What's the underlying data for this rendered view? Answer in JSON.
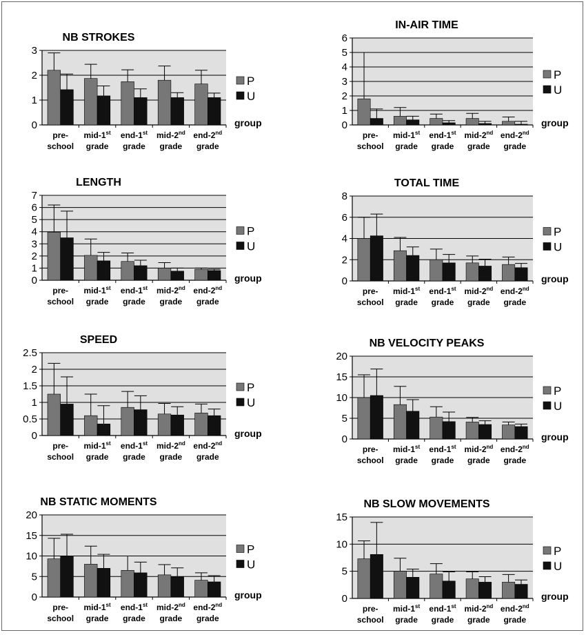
{
  "colors": {
    "plot_bg": "#e0e0e0",
    "P": "#777777",
    "U": "#111111",
    "grid": "#000000"
  },
  "common": {
    "categories": [
      {
        "l1": "pre-",
        "l2": "school",
        "sup": ""
      },
      {
        "l1": "mid-1",
        "l2": "grade",
        "sup": "st"
      },
      {
        "l1": "end-1",
        "l2": "grade",
        "sup": "st"
      },
      {
        "l1": "mid-2",
        "l2": "grade",
        "sup": "nd"
      },
      {
        "l1": "end-2",
        "l2": "grade",
        "sup": "nd"
      }
    ],
    "legend": [
      "P",
      "U"
    ],
    "xlabel": "group"
  },
  "chart_data": [
    {
      "type": "bar",
      "title": "NB STROKES",
      "ylim": [
        0,
        3
      ],
      "yticks": [
        0,
        1,
        2,
        3
      ],
      "ytick_labels": [
        "0",
        "1",
        "2",
        "3"
      ],
      "series": [
        {
          "name": "P",
          "values": [
            2.2,
            1.87,
            1.74,
            1.8,
            1.65
          ],
          "errors": [
            0.7,
            0.57,
            0.48,
            0.57,
            0.55
          ]
        },
        {
          "name": "U",
          "values": [
            1.42,
            1.17,
            1.1,
            1.1,
            1.1
          ],
          "errors": [
            0.63,
            0.4,
            0.35,
            0.2,
            0.18
          ]
        }
      ]
    },
    {
      "type": "bar",
      "title": "IN-AIR TIME",
      "ylim": [
        0,
        6
      ],
      "yticks": [
        0,
        1,
        2,
        3,
        4,
        5,
        6
      ],
      "ytick_labels": [
        "0",
        "1",
        "2",
        "3",
        "4",
        "5",
        "6"
      ],
      "series": [
        {
          "name": "P",
          "values": [
            1.8,
            0.6,
            0.45,
            0.45,
            0.25
          ],
          "errors": [
            3.2,
            0.6,
            0.3,
            0.35,
            0.3
          ]
        },
        {
          "name": "U",
          "values": [
            0.45,
            0.35,
            0.15,
            0.1,
            0.05
          ],
          "errors": [
            0.65,
            0.25,
            0.15,
            0.15,
            0.2
          ]
        }
      ]
    },
    {
      "type": "bar",
      "title": "LENGTH",
      "ylim": [
        0,
        7
      ],
      "yticks": [
        0,
        1,
        2,
        3,
        4,
        5,
        6,
        7
      ],
      "ytick_labels": [
        "0",
        "1",
        "2",
        "3",
        "4",
        "5",
        "6",
        "7"
      ],
      "series": [
        {
          "name": "P",
          "values": [
            3.95,
            2.05,
            1.55,
            1.0,
            0.9
          ],
          "errors": [
            2.25,
            1.35,
            0.7,
            0.45,
            0.1
          ]
        },
        {
          "name": "U",
          "values": [
            3.5,
            1.6,
            1.2,
            0.75,
            0.8
          ],
          "errors": [
            2.2,
            0.7,
            0.45,
            0.25,
            0.1
          ]
        }
      ]
    },
    {
      "type": "bar",
      "title": "TOTAL TIME",
      "ylim": [
        0,
        8
      ],
      "yticks": [
        0,
        2,
        4,
        6,
        8
      ],
      "ytick_labels": [
        "0",
        "2",
        "4",
        "6",
        "8"
      ],
      "series": [
        {
          "name": "P",
          "values": [
            4.0,
            2.85,
            2.0,
            1.7,
            1.55
          ],
          "errors": [
            2.0,
            1.25,
            1.0,
            0.65,
            0.7
          ]
        },
        {
          "name": "U",
          "values": [
            4.25,
            2.4,
            1.7,
            1.4,
            1.25
          ],
          "errors": [
            2.05,
            0.8,
            0.8,
            0.65,
            0.4
          ]
        }
      ]
    },
    {
      "type": "bar",
      "title": "SPEED",
      "ylim": [
        0,
        2.5
      ],
      "yticks": [
        0,
        0.5,
        1,
        1.5,
        2,
        2.5
      ],
      "ytick_labels": [
        "0",
        "0.5",
        "1",
        "1.5",
        "2",
        "2.5"
      ],
      "series": [
        {
          "name": "P",
          "values": [
            1.25,
            0.6,
            0.85,
            0.65,
            0.68
          ],
          "errors": [
            0.93,
            0.65,
            0.48,
            0.32,
            0.27
          ]
        },
        {
          "name": "U",
          "values": [
            0.95,
            0.35,
            0.78,
            0.62,
            0.6
          ],
          "errors": [
            0.82,
            0.55,
            0.42,
            0.25,
            0.2
          ]
        }
      ]
    },
    {
      "type": "bar",
      "title": "NB VELOCITY PEAKS",
      "ylim": [
        0,
        20
      ],
      "yticks": [
        0,
        5,
        10,
        15,
        20
      ],
      "ytick_labels": [
        "0",
        "5",
        "10",
        "15",
        "20"
      ],
      "series": [
        {
          "name": "P",
          "values": [
            10.0,
            8.3,
            5.3,
            4.1,
            3.4
          ],
          "errors": [
            5.5,
            4.4,
            2.5,
            1.1,
            0.7
          ]
        },
        {
          "name": "U",
          "values": [
            10.5,
            6.7,
            4.2,
            3.5,
            3.0
          ],
          "errors": [
            6.4,
            2.8,
            2.3,
            0.9,
            0.6
          ]
        }
      ]
    },
    {
      "type": "bar",
      "title": "NB STATIC MOMENTS",
      "ylim": [
        0,
        20
      ],
      "yticks": [
        0,
        5,
        10,
        15,
        20
      ],
      "ytick_labels": [
        "0",
        "5",
        "10",
        "15",
        "20"
      ],
      "series": [
        {
          "name": "P",
          "values": [
            9.3,
            8.0,
            6.5,
            5.4,
            4.1
          ],
          "errors": [
            5.0,
            4.4,
            3.5,
            2.5,
            1.8
          ]
        },
        {
          "name": "U",
          "values": [
            10.0,
            7.0,
            5.9,
            4.9,
            3.7
          ],
          "errors": [
            5.3,
            3.4,
            2.6,
            2.2,
            1.5
          ]
        }
      ]
    },
    {
      "type": "bar",
      "title": "NB SLOW MOVEMENTS",
      "ylim": [
        0,
        15
      ],
      "yticks": [
        0,
        5,
        10,
        15
      ],
      "ytick_labels": [
        "0",
        "5",
        "10",
        "15"
      ],
      "series": [
        {
          "name": "P",
          "values": [
            7.3,
            5.0,
            4.5,
            3.6,
            3.0
          ],
          "errors": [
            3.3,
            2.4,
            1.9,
            1.3,
            1.4
          ]
        },
        {
          "name": "U",
          "values": [
            8.1,
            3.9,
            3.2,
            3.0,
            2.6
          ],
          "errors": [
            5.9,
            1.5,
            1.7,
            1.0,
            0.8
          ]
        }
      ]
    }
  ]
}
